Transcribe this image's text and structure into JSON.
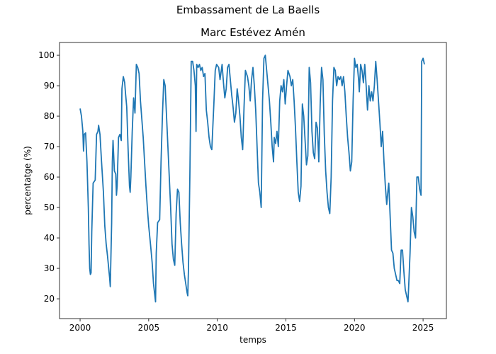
{
  "chart_data": {
    "type": "line",
    "suptitle": "Embassament de La Baells",
    "title": "Marc Estévez Amén",
    "x_label": "temps",
    "y_label": "percentatge (%)",
    "xlim": [
      1998.5,
      2026.7
    ],
    "ylim": [
      13.5,
      104.2
    ],
    "xticks": [
      2000,
      2005,
      2010,
      2015,
      2020,
      2025
    ],
    "yticks": [
      20,
      30,
      40,
      50,
      60,
      70,
      80,
      90,
      100
    ],
    "x": [
      2000.0,
      2000.1,
      2000.2,
      2000.25,
      2000.3,
      2000.4,
      2000.5,
      2000.6,
      2000.65,
      2000.7,
      2000.75,
      2000.8,
      2000.85,
      2000.95,
      2001.1,
      2001.2,
      2001.3,
      2001.35,
      2001.45,
      2001.55,
      2001.7,
      2001.8,
      2001.9,
      2002.0,
      2002.15,
      2002.2,
      2002.3,
      2002.35,
      2002.4,
      2002.5,
      2002.6,
      2002.65,
      2002.7,
      2002.8,
      2002.9,
      2003.0,
      2003.05,
      2003.15,
      2003.25,
      2003.3,
      2003.4,
      2003.5,
      2003.6,
      2003.65,
      2003.7,
      2003.8,
      2003.9,
      2004.0,
      2004.1,
      2004.2,
      2004.3,
      2004.4,
      2004.5,
      2004.6,
      2004.7,
      2004.8,
      2004.9,
      2005.0,
      2005.15,
      2005.25,
      2005.35,
      2005.45,
      2005.5,
      2005.55,
      2005.65,
      2005.8,
      2005.9,
      2006.0,
      2006.1,
      2006.2,
      2006.3,
      2006.4,
      2006.5,
      2006.6,
      2006.7,
      2006.8,
      2006.9,
      2007.0,
      2007.1,
      2007.2,
      2007.3,
      2007.4,
      2007.5,
      2007.6,
      2007.7,
      2007.8,
      2007.85,
      2007.9,
      2008.0,
      2008.1,
      2008.2,
      2008.3,
      2008.4,
      2008.45,
      2008.5,
      2008.6,
      2008.7,
      2008.8,
      2008.9,
      2009.0,
      2009.1,
      2009.2,
      2009.3,
      2009.4,
      2009.5,
      2009.6,
      2009.65,
      2009.75,
      2009.85,
      2009.95,
      2010.1,
      2010.2,
      2010.35,
      2010.45,
      2010.55,
      2010.65,
      2010.75,
      2010.85,
      2010.95,
      2011.05,
      2011.15,
      2011.25,
      2011.35,
      2011.45,
      2011.55,
      2011.65,
      2011.75,
      2011.85,
      2011.95,
      2012.05,
      2012.2,
      2012.3,
      2012.4,
      2012.5,
      2012.6,
      2012.7,
      2012.8,
      2012.9,
      2013.0,
      2013.1,
      2013.2,
      2013.3,
      2013.4,
      2013.5,
      2013.6,
      2013.7,
      2013.8,
      2013.9,
      2014.0,
      2014.1,
      2014.15,
      2014.25,
      2014.35,
      2014.45,
      2014.55,
      2014.65,
      2014.75,
      2014.85,
      2014.95,
      2015.05,
      2015.15,
      2015.3,
      2015.4,
      2015.5,
      2015.6,
      2015.7,
      2015.8,
      2015.9,
      2016.0,
      2016.1,
      2016.2,
      2016.3,
      2016.4,
      2016.5,
      2016.6,
      2016.7,
      2016.8,
      2016.9,
      2017.0,
      2017.1,
      2017.2,
      2017.3,
      2017.4,
      2017.5,
      2017.6,
      2017.7,
      2017.8,
      2017.9,
      2018.0,
      2018.1,
      2018.2,
      2018.3,
      2018.4,
      2018.5,
      2018.6,
      2018.7,
      2018.8,
      2018.9,
      2019.0,
      2019.1,
      2019.2,
      2019.3,
      2019.4,
      2019.5,
      2019.6,
      2019.7,
      2019.8,
      2019.9,
      2020.0,
      2020.1,
      2020.2,
      2020.3,
      2020.35,
      2020.45,
      2020.55,
      2020.65,
      2020.75,
      2020.85,
      2020.95,
      2021.05,
      2021.15,
      2021.25,
      2021.35,
      2021.45,
      2021.55,
      2021.65,
      2021.75,
      2021.85,
      2021.95,
      2022.05,
      2022.15,
      2022.25,
      2022.35,
      2022.45,
      2022.5,
      2022.6,
      2022.7,
      2022.8,
      2022.9,
      2023.0,
      2023.1,
      2023.2,
      2023.3,
      2023.4,
      2023.5,
      2023.6,
      2023.7,
      2023.8,
      2023.9,
      2023.95,
      2024.05,
      2024.15,
      2024.25,
      2024.35,
      2024.45,
      2024.55,
      2024.65,
      2024.75,
      2024.85,
      2024.9,
      2025.0,
      2025.1
    ],
    "series": [
      {
        "color": "#1f77b4",
        "values": [
          82.5,
          80,
          75,
          68.5,
          74,
          74.5,
          65,
          50,
          38,
          30,
          28,
          28.5,
          42,
          58,
          59,
          74,
          75,
          77,
          74,
          66,
          55,
          44,
          38,
          34,
          27,
          24,
          45,
          65,
          72,
          62,
          61,
          54,
          57,
          73,
          74,
          72,
          89,
          93,
          91,
          88,
          83,
          69,
          57,
          55,
          60,
          75,
          86,
          81,
          97,
          96,
          94,
          85,
          79,
          73,
          65,
          57,
          50,
          44,
          37,
          32,
          25,
          21,
          19,
          35,
          45,
          46,
          65,
          80,
          92,
          90,
          80,
          70,
          60,
          50,
          38,
          33,
          31,
          48,
          56,
          55,
          45,
          38,
          32,
          28,
          25,
          22,
          21,
          30,
          60,
          98,
          98,
          95,
          90,
          75,
          97,
          96,
          97,
          95,
          96,
          93,
          94,
          82,
          78,
          73,
          70,
          69,
          74,
          84,
          95,
          97,
          96,
          92,
          97,
          91,
          86,
          89,
          96,
          97,
          92,
          87,
          83,
          78,
          81,
          89,
          85,
          80,
          73,
          69,
          83,
          95,
          93,
          90,
          85,
          92,
          96,
          90,
          82,
          70,
          58,
          55,
          50,
          85,
          99,
          100,
          95,
          90,
          85,
          78,
          70,
          65,
          73,
          71,
          75,
          70,
          85,
          90,
          88,
          92,
          84,
          90,
          95,
          93,
          90,
          92,
          85,
          76,
          65,
          55,
          52,
          57,
          84,
          80,
          72,
          64,
          67,
          96,
          91,
          75,
          68,
          66,
          78,
          76,
          65,
          84,
          96,
          92,
          74,
          62,
          55,
          50,
          48,
          60,
          85,
          96,
          95,
          90,
          93,
          92,
          93,
          90,
          93,
          88,
          80,
          73,
          68,
          62,
          65,
          85,
          99,
          96,
          97,
          92,
          88,
          97,
          95,
          91,
          97,
          90,
          82,
          90,
          85,
          88,
          85,
          90,
          98,
          92,
          85,
          78,
          70,
          75,
          65,
          57,
          51,
          56,
          58,
          47,
          36,
          35,
          30,
          28,
          26,
          26,
          25,
          36,
          36,
          29,
          23,
          21,
          19,
          24,
          35,
          50,
          47,
          42,
          40,
          60,
          60,
          56,
          54,
          98,
          99,
          97
        ]
      }
    ]
  }
}
